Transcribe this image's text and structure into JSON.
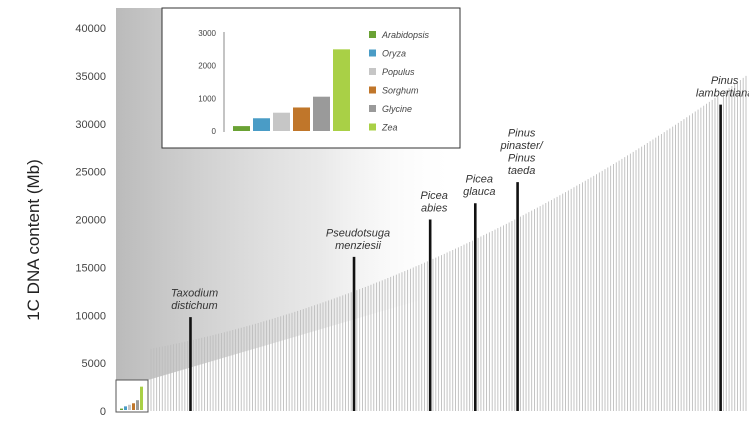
{
  "chart_data": [
    {
      "type": "bar",
      "ylabel": "1C DNA content (Mb)",
      "ylim": [
        0,
        40000
      ],
      "yticks": [
        0,
        5000,
        10000,
        15000,
        20000,
        25000,
        30000,
        35000,
        40000
      ],
      "grid": false,
      "bar_color": "#bdbdbd",
      "highlight_color": "#111111",
      "bar_count": 212,
      "start_value": 6500,
      "end_value": 35000,
      "highlighted": [
        {
          "lines": [
            "Taxodium",
            "distichum"
          ],
          "value": 9800,
          "index": 14
        },
        {
          "lines": [
            "Pseudotsuga",
            "menziesii"
          ],
          "value": 16100,
          "index": 72
        },
        {
          "lines": [
            "Picea",
            "abies"
          ],
          "value": 20000,
          "index": 99
        },
        {
          "lines": [
            "Picea",
            "glauca"
          ],
          "value": 21700,
          "index": 115
        },
        {
          "lines": [
            "Pinus",
            "pinaster/",
            "Pinus",
            "taeda"
          ],
          "value": 23900,
          "index": 130
        },
        {
          "lines": [
            "Pinus",
            "lambertiana"
          ],
          "value": 32000,
          "index": 202
        }
      ],
      "reference_box_values": [
        150,
        390,
        560,
        720,
        1050,
        2500
      ]
    },
    {
      "type": "bar",
      "categories": [
        "Arabidopsis",
        "Oryza",
        "Populus",
        "Sorghum",
        "Glycine",
        "Zea"
      ],
      "values": [
        150,
        390,
        560,
        720,
        1050,
        2500
      ],
      "colors": [
        "#6aa234",
        "#4a9cc6",
        "#c6c6c6",
        "#c0762a",
        "#9a9a9a",
        "#a9d046"
      ],
      "ylim": [
        0,
        3000
      ],
      "yticks": [
        0,
        1000,
        2000,
        3000
      ]
    }
  ]
}
